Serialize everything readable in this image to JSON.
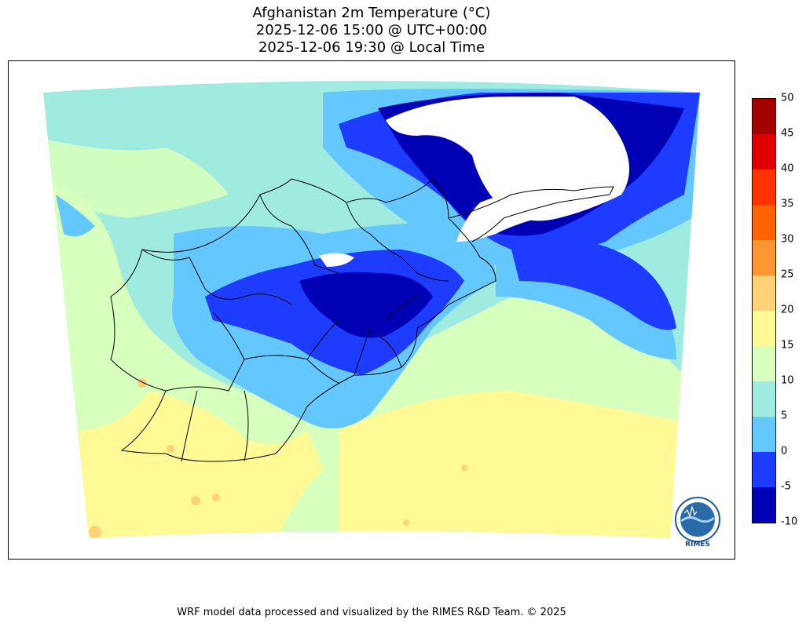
{
  "title": {
    "line1": "Afghanistan 2m Temperature (°C)",
    "line2": "2025-12-06 15:00 @ UTC+00:00",
    "line3": "2025-12-06 19:30 @ Local Time"
  },
  "footer": "WRF model data processed and visualized by the RIMES R&D Team. © 2025",
  "logo": {
    "name": "RIMES",
    "text": "RIMES",
    "ring_text": "Regional Integrated Multi-Hazard Early Warning System"
  },
  "colorbar": {
    "ticks": [
      "-10",
      "-5",
      "0",
      "5",
      "10",
      "15",
      "20",
      "25",
      "30",
      "35",
      "40",
      "45",
      "50"
    ],
    "colors": [
      "#0000b4",
      "#1e3cff",
      "#64c8ff",
      "#a0ebe0",
      "#d7ffbe",
      "#fffa96",
      "#ffd278",
      "#ff9632",
      "#ff6400",
      "#ff3200",
      "#e10000",
      "#a50000"
    ]
  },
  "map_colors": {
    "below_minus10": "#ffffff",
    "minus10_minus5": "#0000b4",
    "minus5_0": "#1e3cff",
    "0_5": "#64c8ff",
    "5_10": "#a0ebe0",
    "10_15": "#d7ffbe",
    "15_20": "#fffa96",
    "20_25": "#ffd278",
    "border": "#000000"
  }
}
